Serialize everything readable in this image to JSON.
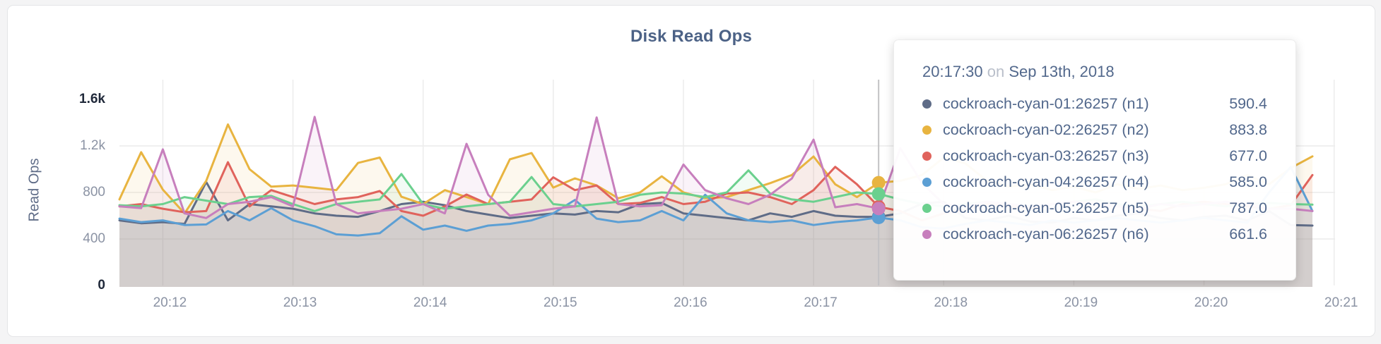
{
  "page": {
    "background": "#f4f4f5",
    "card_background": "#ffffff"
  },
  "chart_data": {
    "type": "line",
    "title": "Disk Read Ops",
    "ylabel": "Read Ops",
    "xlabel": "",
    "ylim": [
      0,
      1600
    ],
    "grid": true,
    "legend_position": "tooltip",
    "yticks": [
      {
        "value": 1600,
        "label": "1.6k",
        "major": true
      },
      {
        "value": 1200,
        "label": "1.2k",
        "major": false
      },
      {
        "value": 800,
        "label": "800",
        "major": false
      },
      {
        "value": 400,
        "label": "400",
        "major": false
      },
      {
        "value": 0,
        "label": "0",
        "major": true
      }
    ],
    "xticks": [
      "20:12",
      "20:13",
      "20:14",
      "20:15",
      "20:16",
      "20:17",
      "20:18",
      "20:19",
      "20:20",
      "20:21"
    ],
    "x": [
      "20:11:40",
      "20:11:50",
      "20:12:00",
      "20:12:10",
      "20:12:20",
      "20:12:30",
      "20:12:40",
      "20:12:50",
      "20:13:00",
      "20:13:10",
      "20:13:20",
      "20:13:30",
      "20:13:40",
      "20:13:50",
      "20:14:00",
      "20:14:10",
      "20:14:20",
      "20:14:30",
      "20:14:40",
      "20:14:50",
      "20:15:00",
      "20:15:10",
      "20:15:20",
      "20:15:30",
      "20:15:40",
      "20:15:50",
      "20:16:00",
      "20:16:10",
      "20:16:20",
      "20:16:30",
      "20:16:40",
      "20:16:50",
      "20:17:00",
      "20:17:10",
      "20:17:20",
      "20:17:30",
      "20:17:40",
      "20:17:50",
      "20:18:00",
      "20:18:10",
      "20:18:20",
      "20:18:30",
      "20:18:40",
      "20:18:50",
      "20:19:00",
      "20:19:10",
      "20:19:20",
      "20:19:30",
      "20:19:40",
      "20:19:50",
      "20:20:00",
      "20:20:10",
      "20:20:20",
      "20:20:30",
      "20:20:40",
      "20:20:50"
    ],
    "series": [
      {
        "name": "cockroach-cyan-01:26257 (n1)",
        "color": "#5f6c87",
        "values": [
          560,
          535,
          545,
          530,
          890,
          560,
          700,
          680,
          660,
          620,
          600,
          590,
          640,
          700,
          720,
          690,
          640,
          610,
          580,
          600,
          620,
          610,
          640,
          630,
          700,
          710,
          620,
          600,
          580,
          560,
          620,
          590,
          640,
          600,
          590,
          590.4,
          620,
          705,
          720,
          580,
          560,
          600,
          550,
          540,
          580,
          560,
          600,
          620,
          580,
          560,
          590,
          600,
          560,
          640,
          520,
          515
        ]
      },
      {
        "name": "cockroach-cyan-02:26257 (n2)",
        "color": "#e8b440",
        "values": [
          740,
          1146,
          824,
          620,
          900,
          1385,
          1000,
          850,
          860,
          840,
          820,
          1054,
          1100,
          763,
          700,
          820,
          760,
          700,
          1085,
          1139,
          842,
          921,
          860,
          750,
          800,
          939,
          800,
          750,
          760,
          820,
          880,
          950,
          1109,
          870,
          760,
          883.8,
          900,
          950,
          1100,
          1050,
          900,
          850,
          870,
          820,
          850,
          800,
          870,
          830,
          860,
          820,
          840,
          870,
          950,
          870,
          1010,
          1110
        ]
      },
      {
        "name": "cockroach-cyan-03:26257 (n3)",
        "color": "#e0635c",
        "values": [
          680,
          700,
          660,
          630,
          640,
          1060,
          680,
          820,
          760,
          700,
          740,
          760,
          812,
          640,
          600,
          680,
          782,
          700,
          720,
          740,
          930,
          820,
          860,
          700,
          710,
          760,
          700,
          720,
          790,
          800,
          760,
          700,
          820,
          1020,
          870,
          677,
          640,
          560,
          620,
          650,
          700,
          680,
          660,
          700,
          720,
          700,
          680,
          660,
          640,
          700,
          720,
          700,
          680,
          660,
          690,
          950
        ]
      },
      {
        "name": "cockroach-cyan-04:26257 (n4)",
        "color": "#5c9fd4",
        "values": [
          575,
          545,
          560,
          520,
          525,
          640,
          560,
          665,
          560,
          510,
          440,
          430,
          450,
          595,
          480,
          515,
          470,
          515,
          530,
          560,
          620,
          736,
          575,
          545,
          560,
          640,
          560,
          780,
          620,
          560,
          545,
          560,
          520,
          545,
          560,
          585,
          560,
          500,
          490,
          530,
          560,
          540,
          520,
          560,
          540,
          560,
          580,
          560,
          540,
          560,
          580,
          560,
          540,
          800,
          1020,
          640
        ]
      },
      {
        "name": "cockroach-cyan-05:26257 (n5)",
        "color": "#6bd08e",
        "values": [
          690,
          680,
          700,
          760,
          730,
          700,
          760,
          770,
          700,
          640,
          700,
          720,
          740,
          958,
          700,
          660,
          680,
          700,
          720,
          933,
          700,
          680,
          700,
          720,
          780,
          800,
          790,
          760,
          800,
          990,
          790,
          740,
          720,
          760,
          800,
          787,
          740,
          700,
          680,
          700,
          720,
          700,
          680,
          700,
          720,
          740,
          700,
          680,
          700,
          720,
          700,
          680,
          700,
          710,
          700,
          695
        ]
      },
      {
        "name": "cockroach-cyan-06:26257 (n6)",
        "color": "#c77fbd",
        "values": [
          680,
          665,
          1170,
          620,
          580,
          700,
          720,
          760,
          680,
          1450,
          700,
          620,
          640,
          660,
          700,
          620,
          1218,
          780,
          600,
          630,
          660,
          680,
          1445,
          700,
          680,
          690,
          1040,
          820,
          750,
          700,
          780,
          920,
          1254,
          673,
          700,
          661.6,
          1180,
          880,
          700,
          680,
          720,
          700,
          680,
          700,
          720,
          700,
          680,
          660,
          700,
          680,
          700,
          720,
          700,
          660,
          660,
          640
        ]
      }
    ],
    "hover": {
      "index": 35,
      "time": "20:17:30",
      "on_word": "on",
      "date": "Sep 13th, 2018",
      "rows": [
        {
          "name": "cockroach-cyan-01:26257 (n1)",
          "value": "590.4",
          "color": "#5f6c87"
        },
        {
          "name": "cockroach-cyan-02:26257 (n2)",
          "value": "883.8",
          "color": "#e8b440"
        },
        {
          "name": "cockroach-cyan-03:26257 (n3)",
          "value": "677.0",
          "color": "#e0635c"
        },
        {
          "name": "cockroach-cyan-04:26257 (n4)",
          "value": "585.0",
          "color": "#5c9fd4"
        },
        {
          "name": "cockroach-cyan-05:26257 (n5)",
          "value": "787.0",
          "color": "#6bd08e"
        },
        {
          "name": "cockroach-cyan-06:26257 (n6)",
          "value": "661.6",
          "color": "#c77fbd"
        }
      ]
    },
    "colors": {
      "gridline": "#ececec",
      "hover_line": "#c2c2c4",
      "title": "#4c6286",
      "tick_minor": "#8b93a4",
      "tick_major": "#20293a",
      "tooltip_text": "#52688c"
    }
  }
}
